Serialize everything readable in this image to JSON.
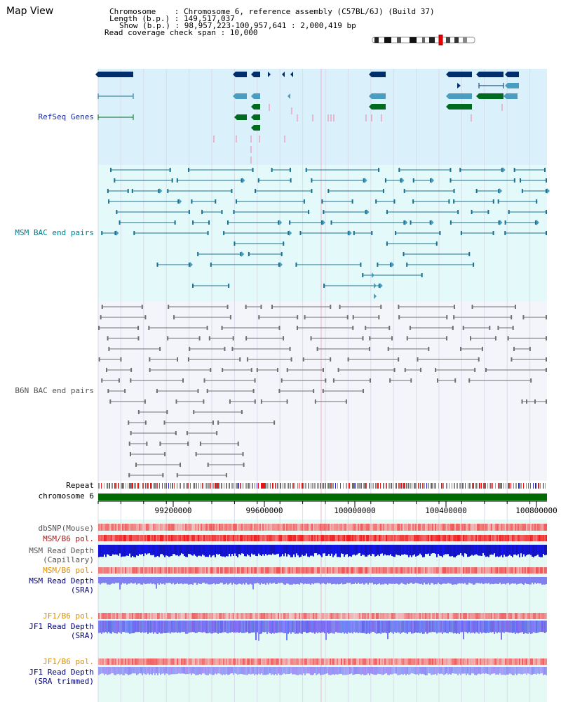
{
  "title": "Map View",
  "header": {
    "line1": "Chromosome    : Chromosome 6, reference assembly (C57BL/6J) (Build 37)",
    "line2": "Length (b.p.) : 149,517,037",
    "line3": "Show (b.p.) : 98,957,223-100,957,641 : 2,000,419 bp",
    "line4": "Read coverage check span : 10,000"
  },
  "tracks": {
    "refseq": "RefSeq Genes",
    "msm_bac": "MSM BAC end pairs",
    "b6n_bac": "B6N BAC end pairs",
    "repeat": "Repeat",
    "chromosome": "chromosome 6",
    "dbsnp": "dbSNP(Mouse)",
    "msm_b6_pol_1": "MSM/B6 pol.",
    "msm_depth_cap_1": "MSM Read Depth",
    "msm_depth_cap_2": "(Capillary)",
    "msm_b6_pol_2": "MSM/B6 pol.",
    "msm_depth_sra_1": "MSM Read Depth",
    "msm_depth_sra_2": "(SRA)",
    "jf1_b6_pol_1": "JF1/B6 pol.",
    "jf1_depth_sra_1": "JF1 Read Depth",
    "jf1_depth_sra_2": "(SRA)",
    "jf1_b6_pol_2": "JF1/B6 pol.",
    "jf1_depth_trim_1": "JF1 Read Depth",
    "jf1_depth_trim_2": "(SRA trimmed)"
  },
  "axis": {
    "ticks": [
      "99200000",
      "99600000",
      "100000000",
      "100400000",
      "100800000"
    ]
  },
  "colors": {
    "refseq_bg": "#daf0fa",
    "msm_bg": "#e4fafa",
    "b6n_bg": "#f3f5fa",
    "bottom_bg": "#e6faf5",
    "gene_dark": "#002e6b",
    "gene_mid": "#4a9cc0",
    "gene_green": "#006b1e",
    "msm_pair": "#1a7090",
    "b6n_pair": "#707070",
    "chrom_bar": "#006b00",
    "label_blue": "#1a2fa0",
    "label_teal": "#007a8a",
    "label_gray": "#555555",
    "label_orange": "#e09000",
    "label_navy": "#00007a",
    "label_red": "#aa1b1b"
  }
}
